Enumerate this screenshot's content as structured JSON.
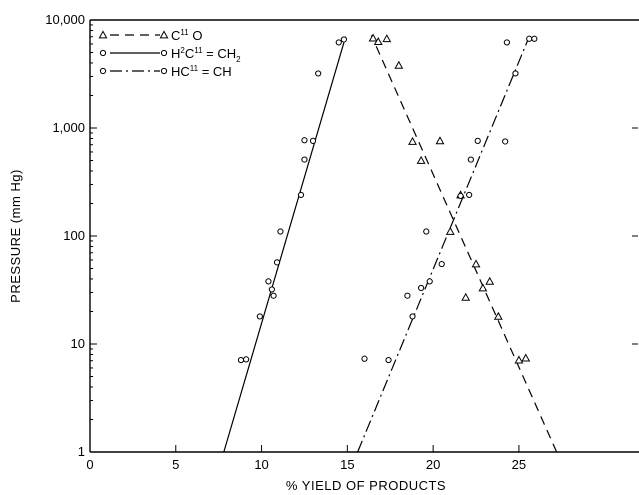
{
  "chart_data": {
    "type": "scatter",
    "xlabel": "% YIELD OF PRODUCTS",
    "ylabel": "PRESSURE (mm Hg)",
    "xlim": [
      0,
      32
    ],
    "ylim": [
      1,
      10000
    ],
    "yscale": "log",
    "x_ticks": [
      0,
      5,
      10,
      15,
      20,
      25
    ],
    "x_tick_labels": [
      "0",
      "5",
      "10",
      "15",
      "20",
      "25"
    ],
    "y_ticks": [
      1,
      10,
      100,
      1000,
      10000
    ],
    "y_tick_labels": [
      "1",
      "10",
      "100",
      "1,000",
      "10,000"
    ],
    "grid": false,
    "legend_position": "top-left",
    "series": [
      {
        "name_parts": [
          "C",
          "11",
          " O"
        ],
        "marker": "triangle",
        "line_style": "dashed",
        "points": [
          [
            16.5,
            6800
          ],
          [
            16.8,
            6300
          ],
          [
            17.3,
            6700
          ],
          [
            18.0,
            3800
          ],
          [
            18.8,
            750
          ],
          [
            19.3,
            500
          ],
          [
            20.4,
            760
          ],
          [
            21.0,
            110
          ],
          [
            21.6,
            240
          ],
          [
            21.9,
            27
          ],
          [
            22.5,
            55
          ],
          [
            22.9,
            33
          ],
          [
            23.3,
            38
          ],
          [
            23.8,
            18
          ],
          [
            25.0,
            7.1
          ],
          [
            25.4,
            7.4
          ]
        ],
        "fit_line": [
          [
            27.2,
            1
          ],
          [
            16.4,
            7200
          ]
        ]
      },
      {
        "name_parts": [
          "H",
          "2",
          "C",
          "11",
          " = CH",
          "2"
        ],
        "marker": "circle",
        "line_style": "solid",
        "points": [
          [
            8.8,
            7.1
          ],
          [
            9.1,
            7.2
          ],
          [
            9.9,
            18
          ],
          [
            10.4,
            38
          ],
          [
            10.6,
            32
          ],
          [
            10.7,
            28
          ],
          [
            10.9,
            57
          ],
          [
            11.1,
            110
          ],
          [
            12.3,
            240
          ],
          [
            12.5,
            510
          ],
          [
            12.5,
            770
          ],
          [
            13.0,
            760
          ],
          [
            13.3,
            3200
          ],
          [
            14.5,
            6200
          ],
          [
            14.8,
            6600
          ]
        ],
        "fit_line": [
          [
            7.8,
            1
          ],
          [
            14.9,
            7000
          ]
        ]
      },
      {
        "name_parts": [
          "HC",
          "11",
          " = CH"
        ],
        "marker": "circle",
        "line_style": "dashdot",
        "points": [
          [
            16.0,
            7.3
          ],
          [
            17.4,
            7.1
          ],
          [
            18.5,
            28
          ],
          [
            18.8,
            18
          ],
          [
            19.3,
            33
          ],
          [
            19.6,
            110
          ],
          [
            19.8,
            38
          ],
          [
            20.5,
            55
          ],
          [
            21.6,
            235
          ],
          [
            22.1,
            240
          ],
          [
            22.2,
            510
          ],
          [
            22.6,
            760
          ],
          [
            24.2,
            750
          ],
          [
            24.3,
            6200
          ],
          [
            24.8,
            3200
          ],
          [
            25.6,
            6700
          ],
          [
            25.9,
            6700
          ]
        ],
        "fit_line": [
          [
            15.6,
            1
          ],
          [
            25.6,
            7000
          ]
        ]
      }
    ]
  }
}
